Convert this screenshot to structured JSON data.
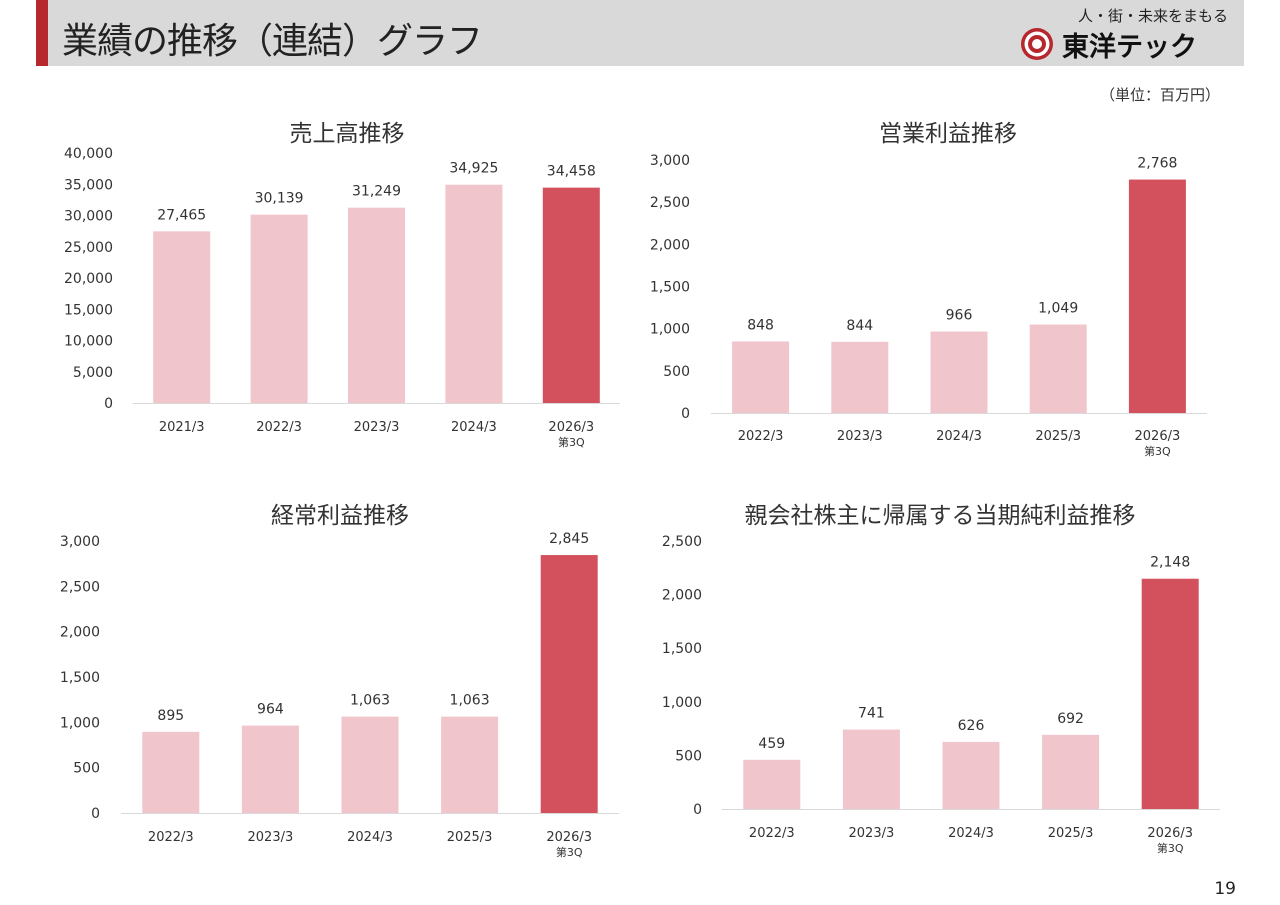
{
  "header": {
    "title": "業績の推移（連結）グラフ",
    "tagline": "人・街・未来をまもる",
    "logo_text": "東洋テック"
  },
  "unit_label": "（単位：百万円）",
  "page_number": "19",
  "colors": {
    "bar_past": "#f0c5cb",
    "bar_current": "#d2515d",
    "accent": "#b7282e",
    "header_bg": "#d9d9d9"
  },
  "chart_data": [
    {
      "type": "bar",
      "title": "売上高推移",
      "categories": [
        "2021/3",
        "2022/3",
        "2023/3",
        "2024/3",
        "2026/3"
      ],
      "sublabels": [
        "",
        "",
        "",
        "",
        "第3Q"
      ],
      "values": [
        27465,
        30139,
        31249,
        34925,
        34458
      ],
      "value_labels": [
        "27,465",
        "30,139",
        "31,249",
        "34,925",
        "34,458"
      ],
      "ylim": [
        0,
        40000
      ],
      "yticks": [
        "0",
        "5,000",
        "10,000",
        "15,000",
        "20,000",
        "25,000",
        "30,000",
        "35,000",
        "40,000"
      ],
      "highlight_index": 4
    },
    {
      "type": "bar",
      "title": "営業利益推移",
      "categories": [
        "2022/3",
        "2023/3",
        "2024/3",
        "2025/3",
        "2026/3"
      ],
      "sublabels": [
        "",
        "",
        "",
        "",
        "第3Q"
      ],
      "values": [
        848,
        844,
        966,
        1049,
        2768
      ],
      "value_labels": [
        "848",
        "844",
        "966",
        "1,049",
        "2,768"
      ],
      "ylim": [
        0,
        3000
      ],
      "yticks": [
        "0",
        "500",
        "1,000",
        "1,500",
        "2,000",
        "2,500",
        "3,000"
      ],
      "highlight_index": 4
    },
    {
      "type": "bar",
      "title": "経常利益推移",
      "categories": [
        "2022/3",
        "2023/3",
        "2024/3",
        "2025/3",
        "2026/3"
      ],
      "sublabels": [
        "",
        "",
        "",
        "",
        "第3Q"
      ],
      "values": [
        895,
        964,
        1063,
        1063,
        2845
      ],
      "value_labels": [
        "895",
        "964",
        "1,063",
        "1,063",
        "2,845"
      ],
      "ylim": [
        0,
        3000
      ],
      "yticks": [
        "0",
        "500",
        "1,000",
        "1,500",
        "2,000",
        "2,500",
        "3,000"
      ],
      "highlight_index": 4
    },
    {
      "type": "bar",
      "title": "親会社株主に帰属する当期純利益推移",
      "categories": [
        "2022/3",
        "2023/3",
        "2024/3",
        "2025/3",
        "2026/3"
      ],
      "sublabels": [
        "",
        "",
        "",
        "",
        "第3Q"
      ],
      "values": [
        459,
        741,
        626,
        692,
        2148
      ],
      "value_labels": [
        "459",
        "741",
        "626",
        "692",
        "2,148"
      ],
      "ylim": [
        0,
        2500
      ],
      "yticks": [
        "0",
        "500",
        "1,000",
        "1,500",
        "2,000",
        "2,500"
      ],
      "highlight_index": 4
    }
  ]
}
